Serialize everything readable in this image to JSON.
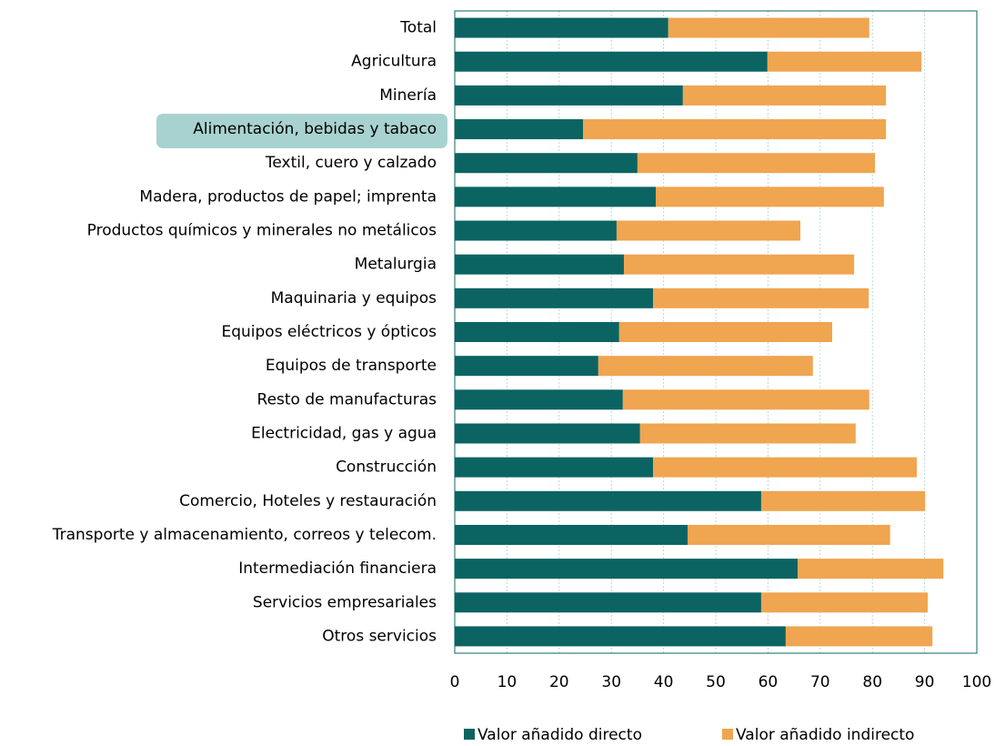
{
  "chart_data": {
    "type": "stacked-barh",
    "categories": [
      "Total",
      "Agricultura",
      "Minería",
      "Alimentación, bebidas y tabaco",
      "Textil, cuero y calzado",
      "Madera, productos de papel; imprenta",
      "Productos químicos y minerales no metálicos",
      "Metalurgia",
      "Maquinaria y equipos",
      "Equipos eléctricos y ópticos",
      "Equipos de transporte",
      "Resto de manufacturas",
      "Electricidad, gas y agua",
      "Construcción",
      "Comercio, Hoteles y restauración",
      "Transporte y almacenamiento, correos y telecom.",
      "Intermediación financiera",
      "Servicios empresariales",
      "Otros servicios"
    ],
    "series": [
      {
        "name": "Valor añadido directo",
        "color": "#0b6462",
        "values": [
          40.9,
          59.9,
          43.7,
          24.6,
          35.0,
          38.5,
          31.0,
          32.4,
          38.0,
          31.5,
          27.5,
          32.2,
          35.5,
          38.0,
          58.7,
          44.6,
          65.7,
          58.7,
          63.4
        ]
      },
      {
        "name": "Valor añadido indirecto",
        "color": "#f0a550",
        "values": [
          38.5,
          29.5,
          38.9,
          58.0,
          45.5,
          43.7,
          35.2,
          44.1,
          41.3,
          40.8,
          41.1,
          47.2,
          41.3,
          50.5,
          31.4,
          38.8,
          27.9,
          31.9,
          28.1
        ]
      }
    ],
    "xlim": [
      0,
      100
    ],
    "xticks": [
      0,
      10,
      20,
      30,
      40,
      50,
      60,
      70,
      80,
      90,
      100
    ],
    "grid": true,
    "legend": "bottom"
  }
}
